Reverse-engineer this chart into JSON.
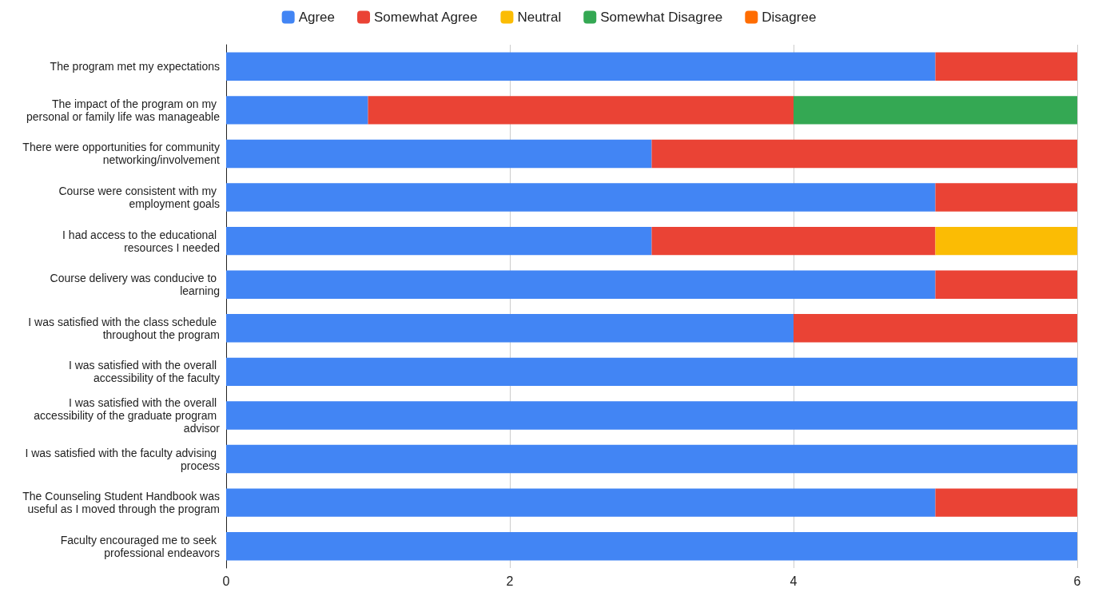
{
  "chart_data": {
    "type": "bar",
    "orientation": "horizontal",
    "stacked": true,
    "categories": [
      "The program met my expectations",
      "The impact of the program on my personal or family life was manageable",
      "There were opportunities for community networking/involvement",
      "Course were consistent with my employment goals",
      "I had access to the educational resources I needed",
      "Course delivery was conducive to learning",
      "I was satisfied with the class schedule throughout the program",
      "I was satisfied with the overall accessibility of the faculty",
      "I was satisfied with the overall accessibility of the graduate program advisor",
      "I was satisfied with the faculty advising process",
      "The Counseling Student Handbook was useful as I moved through the program",
      "Faculty encouraged me to seek professional endeavors"
    ],
    "series": [
      {
        "name": "Agree",
        "color": "#4285f4",
        "values": [
          5,
          1,
          3,
          5,
          3,
          5,
          4,
          6,
          6,
          6,
          5,
          6
        ]
      },
      {
        "name": "Somewhat Agree",
        "color": "#ea4335",
        "values": [
          1,
          3,
          3,
          1,
          2,
          1,
          2,
          0,
          0,
          0,
          1,
          0
        ]
      },
      {
        "name": "Neutral",
        "color": "#fbbc04",
        "values": [
          0,
          0,
          0,
          0,
          1,
          0,
          0,
          0,
          0,
          0,
          0,
          0
        ]
      },
      {
        "name": "Somewhat Disagree",
        "color": "#34a853",
        "values": [
          0,
          2,
          0,
          0,
          0,
          0,
          0,
          0,
          0,
          0,
          0,
          0
        ]
      },
      {
        "name": "Disagree",
        "color": "#ff6d01",
        "values": [
          0,
          0,
          0,
          0,
          0,
          0,
          0,
          0,
          0,
          0,
          0,
          0
        ]
      }
    ],
    "xlim": [
      0,
      6
    ],
    "xticks": [
      0,
      2,
      4,
      6
    ],
    "grid": "x",
    "legend": "top"
  }
}
